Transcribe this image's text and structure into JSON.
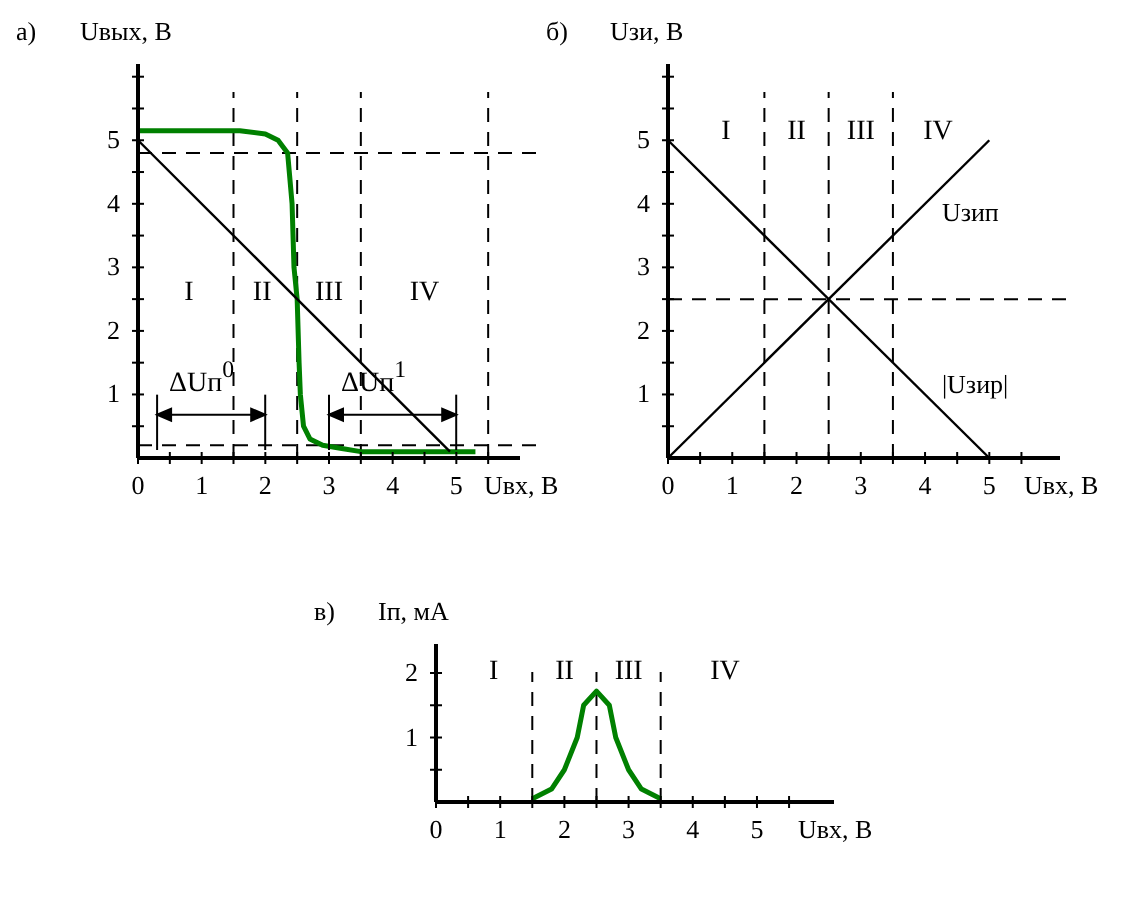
{
  "chart_data": [
    {
      "type": "line",
      "title": "а)",
      "ylabel": "Uвых, В",
      "xlabel": "Uвх, В",
      "xlim": [
        0,
        6
      ],
      "ylim": [
        0,
        6.2
      ],
      "xticks": [
        0,
        {
          "value": 0.5,
          "label": null
        },
        1,
        {
          "value": 1.5,
          "label": null
        },
        2,
        {
          "value": 2.5,
          "label": null
        },
        3,
        {
          "value": 3.5,
          "label": null
        },
        4,
        {
          "value": 4.5,
          "label": null
        },
        5,
        {
          "value": 5.5,
          "label": null
        }
      ],
      "yticks": [
        {
          "value": 0.5,
          "label": null
        },
        1,
        {
          "value": 1.5,
          "label": null
        },
        2,
        {
          "value": 2.5,
          "label": null
        },
        3,
        {
          "value": 3.5,
          "label": null
        },
        4,
        {
          "value": 4.5,
          "label": null
        },
        5,
        {
          "value": 5.5,
          "label": null
        },
        {
          "value": 6,
          "label": null
        }
      ],
      "series": [
        {
          "color": "#008000",
          "x": [
            0,
            1.6,
            2.0,
            2.2,
            2.35,
            2.42,
            2.45,
            2.5,
            2.53,
            2.55,
            2.6,
            2.7,
            2.9,
            3.2,
            3.5,
            5.3
          ],
          "values": [
            5.15,
            5.15,
            5.1,
            5.0,
            4.8,
            4.0,
            3.0,
            2.5,
            1.5,
            1.0,
            0.5,
            0.3,
            0.2,
            0.15,
            0.1,
            0.1
          ]
        },
        {
          "color": "#000000",
          "x": [
            0,
            4.9
          ],
          "values": [
            5,
            0.1
          ]
        }
      ],
      "ref_lines": [
        {
          "axis": "x",
          "value": 1.5,
          "line_style": "dashed"
        },
        {
          "axis": "x",
          "value": 2.5,
          "line_style": "dashed"
        },
        {
          "axis": "x",
          "value": 3.5,
          "line_style": "dashed"
        },
        {
          "axis": "x",
          "value": 5.5,
          "line_style": "dashed"
        },
        {
          "axis": "y",
          "value": 4.8,
          "line_style": "dashed"
        },
        {
          "axis": "y",
          "value": 0.2,
          "line_style": "dashed"
        }
      ],
      "annotations": [
        "I",
        "II",
        "III",
        "IV",
        {
          "text": "ΔUп$^{0}$",
          "x": 0.3,
          "y": 0.2
        },
        {
          "text": "ΔUп$^{1}$",
          "x": 3,
          "y": 0.2
        }
      ],
      "marker": "none",
      "line_style": "solid",
      "grid": false
    },
    {
      "type": "line",
      "title": "б)",
      "ylabel": "Uзи, В",
      "xlabel": "Uвх, В",
      "xlim": [
        0,
        6.1
      ],
      "ylim": [
        0,
        6.2
      ],
      "xticks": [
        0,
        {
          "value": 0.5,
          "label": null
        },
        1,
        {
          "value": 1.5,
          "label": null
        },
        2,
        {
          "value": 2.5,
          "label": null
        },
        3,
        {
          "value": 3.5,
          "label": null
        },
        4,
        {
          "value": 4.5,
          "label": null
        },
        5,
        {
          "value": 5.5,
          "label": null
        }
      ],
      "yticks": [
        {
          "value": 0.5,
          "label": null
        },
        1,
        {
          "value": 1.5,
          "label": null
        },
        2,
        {
          "value": 2.5,
          "label": null
        },
        3,
        {
          "value": 3.5,
          "label": null
        },
        4,
        {
          "value": 4.5,
          "label": null
        },
        5,
        {
          "value": 5.5,
          "label": null
        },
        {
          "value": 6,
          "label": null
        }
      ],
      "series": [
        {
          "name": "Uзип",
          "color": "#000000",
          "x": [
            0,
            5
          ],
          "values": [
            0,
            5
          ]
        },
        {
          "name": "|Uзир|",
          "color": "#000000",
          "x": [
            0,
            5
          ],
          "values": [
            5,
            0
          ]
        }
      ],
      "ref_lines": [
        {
          "axis": "x",
          "value": 1.5,
          "line_style": "dashed"
        },
        {
          "axis": "x",
          "value": 2.5,
          "line_style": "dashed"
        },
        {
          "axis": "x",
          "value": 3.5,
          "line_style": "dashed"
        },
        {
          "axis": "y",
          "value": 2.5,
          "line_style": "dashed"
        }
      ],
      "annotations": [
        "I",
        "II",
        "III",
        "IV"
      ],
      "marker": "none",
      "line_style": "solid",
      "grid": false
    },
    {
      "type": "line",
      "title": "в)",
      "ylabel": "Iп, мА",
      "xlabel": "Uвх, В",
      "xlim": [
        0,
        6.2
      ],
      "ylim": [
        0,
        2.45
      ],
      "xticks": [
        0,
        {
          "value": 0.5,
          "label": null
        },
        1,
        {
          "value": 1.5,
          "label": null
        },
        2,
        {
          "value": 2.5,
          "label": null
        },
        3,
        {
          "value": 3.5,
          "label": null
        },
        4,
        {
          "value": 4.5,
          "label": null
        },
        5,
        {
          "value": 5.5,
          "label": null
        }
      ],
      "yticks": [
        {
          "value": 0.5,
          "label": null
        },
        1,
        {
          "value": 1.5,
          "label": null
        },
        2
      ],
      "series": [
        {
          "color": "#008000",
          "x": [
            1.5,
            1.8,
            2.0,
            2.2,
            2.3,
            2.5,
            2.7,
            2.8,
            3.0,
            3.2,
            3.5
          ],
          "values": [
            0.05,
            0.2,
            0.5,
            1.0,
            1.5,
            1.72,
            1.5,
            1.0,
            0.5,
            0.2,
            0.05
          ]
        }
      ],
      "ref_lines": [
        {
          "axis": "x",
          "value": 1.5,
          "line_style": "dashed"
        },
        {
          "axis": "x",
          "value": 2.5,
          "line_style": "dashed"
        },
        {
          "axis": "x",
          "value": 3.5,
          "line_style": "dashed"
        }
      ],
      "annotations": [
        "I",
        "II",
        "III",
        "IV"
      ],
      "marker": "none",
      "line_style": "solid",
      "grid": false
    }
  ]
}
